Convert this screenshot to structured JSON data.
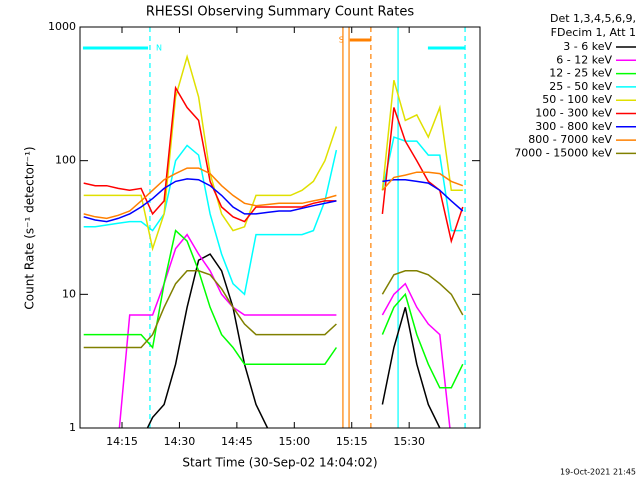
{
  "chart_data": {
    "type": "line",
    "title": "RHESSI Observing Summary Count Rates",
    "xlabel": "Start Time (30-Sep-02 14:04:02)",
    "ylabel": "Count Rate (s⁻¹ detector⁻¹)",
    "legend_header": [
      "Det 1,3,4,5,6,9,",
      "FDecim 1, Att 1"
    ],
    "footer": "19-Oct-2021 21:45",
    "log_y": true,
    "xlim": [
      4.03,
      108.5
    ],
    "ylim": [
      1,
      1000
    ],
    "xticks": [
      {
        "value": 15,
        "label": "14:15"
      },
      {
        "value": 30,
        "label": "14:30"
      },
      {
        "value": 45,
        "label": "14:45"
      },
      {
        "value": 60,
        "label": "15:00"
      },
      {
        "value": 75,
        "label": "15:15"
      },
      {
        "value": 90,
        "label": "15:30"
      }
    ],
    "yticks": [
      1,
      10,
      100,
      1000
    ],
    "x": [
      5,
      8,
      11,
      14,
      17,
      20,
      23,
      26,
      29,
      32,
      35,
      38,
      41,
      44,
      47,
      50,
      53,
      56,
      59,
      62,
      65,
      68,
      71,
      74,
      77,
      80,
      83,
      86,
      89,
      92,
      95,
      98,
      101,
      104
    ],
    "series": [
      {
        "name": "3 - 6 keV",
        "color": "#000000",
        "values": [
          0.8,
          0.8,
          0.8,
          0.8,
          0.8,
          0.8,
          1.2,
          1.5,
          3,
          8,
          18,
          20,
          15,
          8,
          3,
          1.5,
          1,
          0.8,
          0.8,
          0.8,
          0.8,
          0.8,
          0.8,
          null,
          null,
          null,
          1.5,
          4,
          8,
          3,
          1.5,
          1,
          0.8,
          0.8
        ]
      },
      {
        "name": "6 - 12 keV",
        "color": "#ff00ff",
        "values": [
          0.8,
          0.8,
          0.8,
          0.8,
          7,
          7,
          7,
          12,
          22,
          28,
          20,
          15,
          10,
          8,
          7,
          7,
          7,
          7,
          7,
          7,
          7,
          7,
          7,
          null,
          null,
          null,
          7,
          10,
          12,
          8,
          6,
          5,
          0.8,
          0.8
        ]
      },
      {
        "name": "12 - 25 keV",
        "color": "#00ff00",
        "values": [
          5,
          5,
          5,
          5,
          5,
          5,
          4,
          12,
          30,
          25,
          15,
          8,
          5,
          4,
          3,
          3,
          3,
          3,
          3,
          3,
          3,
          3,
          4,
          null,
          null,
          null,
          5,
          8,
          10,
          5,
          3,
          2,
          2,
          3
        ]
      },
      {
        "name": "25 - 50 keV",
        "color": "#00ffff",
        "values": [
          32,
          32,
          33,
          34,
          35,
          35,
          30,
          40,
          100,
          130,
          110,
          40,
          20,
          12,
          10,
          28,
          28,
          28,
          28,
          28,
          30,
          50,
          120,
          null,
          null,
          null,
          60,
          150,
          140,
          140,
          110,
          110,
          30,
          30
        ]
      },
      {
        "name": "50 - 100 keV",
        "color": "#e0e000",
        "values": [
          55,
          55,
          55,
          55,
          55,
          55,
          22,
          40,
          300,
          600,
          300,
          80,
          40,
          30,
          32,
          55,
          55,
          55,
          55,
          60,
          70,
          100,
          180,
          null,
          null,
          null,
          60,
          400,
          200,
          220,
          150,
          250,
          60,
          60
        ]
      },
      {
        "name": "100 - 300 keV",
        "color": "#ff0000",
        "values": [
          68,
          65,
          65,
          62,
          60,
          62,
          40,
          50,
          350,
          250,
          200,
          70,
          45,
          38,
          35,
          45,
          45,
          45,
          45,
          45,
          48,
          50,
          50,
          null,
          null,
          null,
          40,
          250,
          140,
          100,
          70,
          60,
          25,
          45
        ]
      },
      {
        "name": "300 - 800 keV",
        "color": "#0000ff",
        "values": [
          38,
          36,
          35,
          37,
          40,
          45,
          52,
          62,
          70,
          73,
          72,
          65,
          55,
          45,
          40,
          40,
          41,
          42,
          42,
          44,
          46,
          48,
          50,
          null,
          null,
          null,
          70,
          72,
          72,
          70,
          68,
          60,
          50,
          42
        ]
      },
      {
        "name": "800 - 7000 keV",
        "color": "#ff8000",
        "values": [
          40,
          38,
          37,
          39,
          42,
          50,
          60,
          72,
          80,
          88,
          88,
          80,
          65,
          55,
          48,
          46,
          47,
          48,
          48,
          48,
          50,
          52,
          55,
          null,
          null,
          null,
          60,
          75,
          78,
          82,
          82,
          80,
          70,
          65
        ]
      },
      {
        "name": "7000 - 15000 keV",
        "color": "#808000",
        "values": [
          4,
          4,
          4,
          4,
          4,
          4,
          5,
          8,
          12,
          15,
          15,
          14,
          11,
          8,
          6,
          5,
          5,
          5,
          5,
          5,
          5,
          5,
          6,
          null,
          null,
          null,
          10,
          14,
          15,
          15,
          14,
          12,
          10,
          7
        ]
      }
    ],
    "flags": [
      {
        "label": "N",
        "start": 4.8,
        "end": 21.8,
        "color": "#00ffff"
      },
      {
        "label": "S",
        "start": 74.5,
        "end": 80.0,
        "color": "#ff8000"
      },
      {
        "start": 94.9,
        "end": 104.6,
        "color": "#00ffff"
      }
    ],
    "markers": [
      {
        "x": 22.3,
        "color": "#00ffff",
        "dashed": true
      },
      {
        "x": 72.7,
        "color": "#ff8000",
        "dashed": false
      },
      {
        "x": 74.3,
        "color": "#ff8000",
        "dashed": false
      },
      {
        "x": 80.0,
        "color": "#ff8000",
        "dashed": true
      },
      {
        "x": 87.1,
        "color": "#00ffff",
        "dashed": false
      },
      {
        "x": 104.6,
        "color": "#00ffff",
        "dashed": true
      }
    ]
  }
}
